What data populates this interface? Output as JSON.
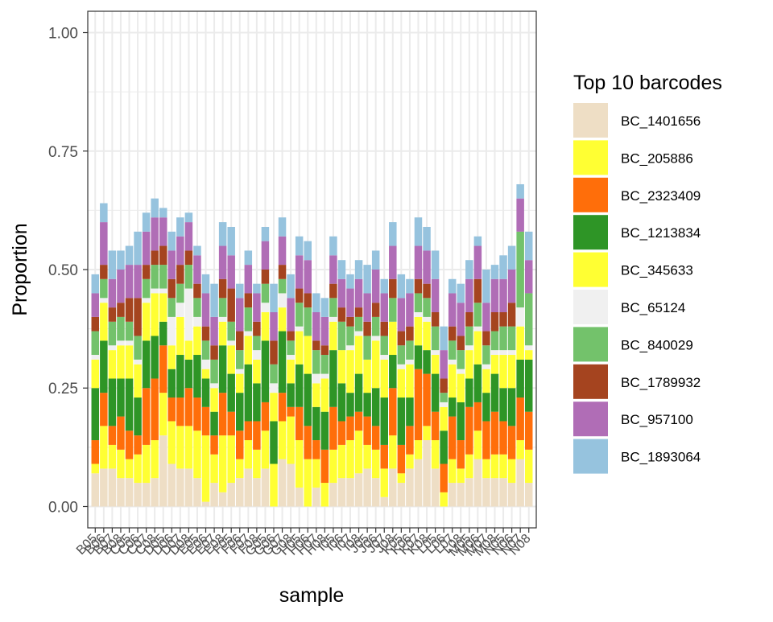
{
  "chart_data": {
    "type": "bar",
    "stacked": true,
    "xlabel": "sample",
    "ylabel": "Proportion",
    "ylim": [
      -0.045,
      1.045
    ],
    "yticks": [
      0.0,
      0.25,
      0.5,
      0.75,
      1.0
    ],
    "ytick_labels": [
      "0.00",
      "0.25",
      "0.50",
      "0.75",
      "1.00"
    ],
    "grid": true,
    "legend": {
      "title": "Top 10 barcodes",
      "position": "right"
    },
    "xtick_labels_visible": [
      "B05",
      "B06",
      "B07",
      "B08",
      "C05",
      "C06",
      "C07",
      "C08",
      "D05",
      "D06",
      "D07",
      "D08",
      "E05",
      "E06",
      "E07",
      "E08",
      "F05",
      "F06",
      "F07",
      "F08",
      "G05",
      "G06",
      "G07",
      "G08",
      "H05",
      "H06",
      "H07",
      "H08",
      "I05",
      "I06",
      "I07",
      "I08",
      "J05",
      "J06",
      "J07",
      "J08",
      "K05",
      "K06",
      "K07",
      "K08",
      "L05",
      "L06",
      "L07",
      "L08",
      "M05",
      "M06",
      "M07",
      "M08",
      "N05",
      "N06",
      "N07",
      "N08"
    ],
    "categories": [
      "B05",
      "B06",
      "B07",
      "B08",
      "C05",
      "C06",
      "C07",
      "C08",
      "D05",
      "D06",
      "D07",
      "D08",
      "E05",
      "E06",
      "E07",
      "E08",
      "F05",
      "F06",
      "F07",
      "F08",
      "G05",
      "G06",
      "G07",
      "G08",
      "H05",
      "H06",
      "H07",
      "H08",
      "I05",
      "I06",
      "I07",
      "I08",
      "J05",
      "J06",
      "J07",
      "J08",
      "K05",
      "K06",
      "K07",
      "K08",
      "L05",
      "L06",
      "L07",
      "L08",
      "M05",
      "M06",
      "M07",
      "M08",
      "N05",
      "N06",
      "N07",
      "N08"
    ],
    "series": [
      {
        "name": "BC_1401656",
        "color": "#EEDEC5",
        "values": [
          0.07,
          0.08,
          0.08,
          0.06,
          0.06,
          0.05,
          0.05,
          0.06,
          0.15,
          0.09,
          0.08,
          0.08,
          0.06,
          0.01,
          0.05,
          0.03,
          0.05,
          0.06,
          0.08,
          0.06,
          0.08,
          0.0,
          0.1,
          0.09,
          0.04,
          0.0,
          0.04,
          0.0,
          0.05,
          0.06,
          0.06,
          0.07,
          0.08,
          0.06,
          0.02,
          0.08,
          0.05,
          0.08,
          0.1,
          0.14,
          0.08,
          0.0,
          0.05,
          0.05,
          0.06,
          0.1,
          0.06,
          0.06,
          0.06,
          0.05,
          0.1,
          0.05
        ]
      },
      {
        "name": "BC_205886",
        "color": "#FFFF33",
        "values": [
          0.02,
          0.09,
          0.05,
          0.06,
          0.04,
          0.06,
          0.08,
          0.08,
          0.09,
          0.09,
          0.09,
          0.09,
          0.1,
          0.14,
          0.06,
          0.12,
          0.1,
          0.04,
          0.06,
          0.06,
          0.08,
          0.09,
          0.08,
          0.1,
          0.1,
          0.1,
          0.06,
          0.05,
          0.07,
          0.07,
          0.08,
          0.09,
          0.05,
          0.06,
          0.06,
          0.07,
          0.02,
          0.03,
          0.04,
          0.03,
          0.06,
          0.03,
          0.05,
          0.03,
          0.05,
          0.06,
          0.04,
          0.05,
          0.05,
          0.05,
          0.04,
          0.07
        ]
      },
      {
        "name": "BC_2323409",
        "color": "#FF6E0A",
        "values": [
          0.05,
          0.07,
          0.04,
          0.07,
          0.06,
          0.04,
          0.12,
          0.13,
          0.1,
          0.05,
          0.06,
          0.08,
          0.07,
          0.06,
          0.04,
          0.09,
          0.05,
          0.06,
          0.04,
          0.06,
          0.06,
          0.0,
          0.06,
          0.02,
          0.07,
          0.07,
          0.04,
          0.07,
          0.09,
          0.05,
          0.05,
          0.04,
          0.06,
          0.05,
          0.05,
          0.1,
          0.06,
          0.06,
          0.15,
          0.11,
          0.06,
          0.06,
          0.09,
          0.06,
          0.1,
          0.06,
          0.08,
          0.09,
          0.07,
          0.07,
          0.09,
          0.08
        ]
      },
      {
        "name": "BC_1213834",
        "color": "#2E9526",
        "values": [
          0.11,
          0.11,
          0.1,
          0.08,
          0.11,
          0.08,
          0.1,
          0.09,
          0.05,
          0.06,
          0.09,
          0.06,
          0.09,
          0.06,
          0.05,
          0.1,
          0.08,
          0.08,
          0.12,
          0.08,
          0.13,
          0.09,
          0.13,
          0.05,
          0.09,
          0.11,
          0.07,
          0.08,
          0.12,
          0.08,
          0.05,
          0.08,
          0.05,
          0.08,
          0.1,
          0.07,
          0.1,
          0.06,
          0.05,
          0.05,
          0.08,
          0.07,
          0.04,
          0.08,
          0.06,
          0.08,
          0.06,
          0.08,
          0.07,
          0.08,
          0.08,
          0.11
        ]
      },
      {
        "name": "BC_345633",
        "color": "#FFFF33",
        "values": [
          0.06,
          0.08,
          0.06,
          0.07,
          0.07,
          0.07,
          0.08,
          0.09,
          0.06,
          0.05,
          0.08,
          0.04,
          0.06,
          0.02,
          0.05,
          0.05,
          0.06,
          0.04,
          0.06,
          0.05,
          0.06,
          0.06,
          0.05,
          0.05,
          0.07,
          0.08,
          0.05,
          0.07,
          0.06,
          0.07,
          0.09,
          0.08,
          0.07,
          0.1,
          0.08,
          0.07,
          0.06,
          0.07,
          0.06,
          0.06,
          0.04,
          0.05,
          0.07,
          0.06,
          0.06,
          0.07,
          0.05,
          0.04,
          0.07,
          0.07,
          0.07,
          0.02
        ]
      },
      {
        "name": "BC_65124",
        "color": "#F0F0F0",
        "values": [
          0.01,
          0.01,
          0.01,
          0.01,
          0.01,
          0.01,
          0.01,
          0.01,
          0.01,
          0.06,
          0.03,
          0.11,
          0.02,
          0.02,
          0.01,
          0.01,
          0.01,
          0.01,
          0.01,
          0.02,
          0.02,
          0.02,
          0.03,
          0.01,
          0.01,
          0.0,
          0.02,
          0.01,
          0.01,
          0.0,
          0.01,
          0.01,
          0.0,
          0.01,
          0.01,
          0.0,
          0.01,
          0.01,
          0.01,
          0.01,
          0.01,
          0.01,
          0.01,
          0.01,
          0.01,
          0.01,
          0.01,
          0.01,
          0.01,
          0.01,
          0.04,
          0.01
        ]
      },
      {
        "name": "BC_840029",
        "color": "#73C26B",
        "values": [
          0.05,
          0.04,
          0.05,
          0.05,
          0.04,
          0.05,
          0.04,
          0.05,
          0.05,
          0.04,
          0.04,
          0.05,
          0.04,
          0.04,
          0.05,
          0.04,
          0.04,
          0.04,
          0.05,
          0.03,
          0.04,
          0.04,
          0.03,
          0.03,
          0.05,
          0.06,
          0.05,
          0.04,
          0.04,
          0.06,
          0.04,
          0.03,
          0.05,
          0.04,
          0.04,
          0.05,
          0.04,
          0.04,
          0.04,
          0.04,
          0.05,
          0.02,
          0.04,
          0.04,
          0.04,
          0.05,
          0.04,
          0.04,
          0.05,
          0.05,
          0.16,
          0.11
        ]
      },
      {
        "name": "BC_1789932",
        "color": "#A5441F",
        "values": [
          0.03,
          0.03,
          0.03,
          0.03,
          0.05,
          0.08,
          0.03,
          0.03,
          0.04,
          0.04,
          0.04,
          0.03,
          0.03,
          0.03,
          0.03,
          0.04,
          0.07,
          0.04,
          0.03,
          0.03,
          0.03,
          0.05,
          0.03,
          0.02,
          0.03,
          0.03,
          0.02,
          0.02,
          0.03,
          0.03,
          0.02,
          0.02,
          0.03,
          0.03,
          0.03,
          0.04,
          0.03,
          0.03,
          0.03,
          0.03,
          0.03,
          0.03,
          0.03,
          0.03,
          0.03,
          0.05,
          0.03,
          0.04,
          0.03,
          0.05,
          0.0,
          0.0
        ]
      },
      {
        "name": "BC_957100",
        "color": "#B06DB6",
        "values": [
          0.05,
          0.09,
          0.06,
          0.07,
          0.07,
          0.07,
          0.07,
          0.07,
          0.06,
          0.06,
          0.06,
          0.06,
          0.06,
          0.07,
          0.06,
          0.07,
          0.07,
          0.07,
          0.06,
          0.06,
          0.06,
          0.06,
          0.06,
          0.07,
          0.07,
          0.07,
          0.06,
          0.06,
          0.06,
          0.06,
          0.06,
          0.06,
          0.06,
          0.07,
          0.06,
          0.07,
          0.07,
          0.07,
          0.07,
          0.07,
          0.07,
          0.06,
          0.07,
          0.07,
          0.07,
          0.07,
          0.06,
          0.07,
          0.07,
          0.07,
          0.07,
          0.07
        ]
      },
      {
        "name": "BC_1893064",
        "color": "#96C3DE",
        "values": [
          0.04,
          0.04,
          0.06,
          0.04,
          0.04,
          0.07,
          0.04,
          0.04,
          0.02,
          0.04,
          0.04,
          0.02,
          0.02,
          0.04,
          0.07,
          0.05,
          0.06,
          0.03,
          0.03,
          0.02,
          0.03,
          0.06,
          0.04,
          0.05,
          0.04,
          0.04,
          0.04,
          0.04,
          0.04,
          0.04,
          0.03,
          0.04,
          0.06,
          0.04,
          0.03,
          0.05,
          0.05,
          0.03,
          0.06,
          0.05,
          0.06,
          0.05,
          0.03,
          0.04,
          0.04,
          0.02,
          0.07,
          0.03,
          0.05,
          0.05,
          0.03,
          0.06
        ]
      }
    ]
  }
}
